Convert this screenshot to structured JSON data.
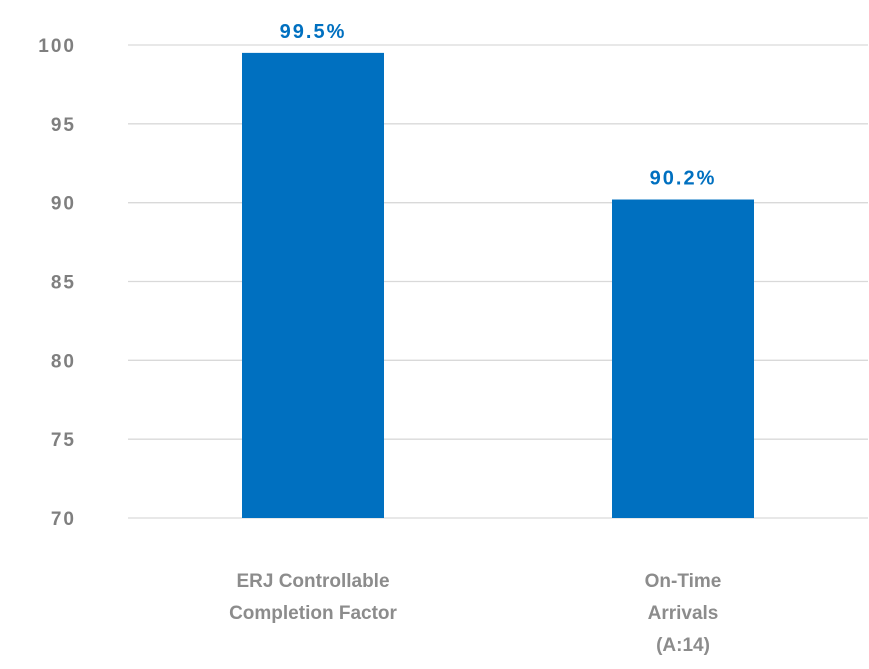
{
  "chart_data": {
    "type": "bar",
    "categories": [
      [
        "ERJ Controllable",
        "Completion Factor"
      ],
      [
        "On-Time",
        "Arrivals",
        "(A:14)"
      ]
    ],
    "values": [
      99.5,
      90.2
    ],
    "data_labels": [
      "99.5%",
      "90.2%"
    ],
    "y_ticks": [
      "100",
      "95",
      "90",
      "85",
      "80",
      "75",
      "70"
    ],
    "ylim": [
      70,
      100
    ],
    "grid": true,
    "legend": "none",
    "bar_color": "#0070c0",
    "label_color": "#0070c0",
    "gridline_color": "#d9d9d9"
  }
}
